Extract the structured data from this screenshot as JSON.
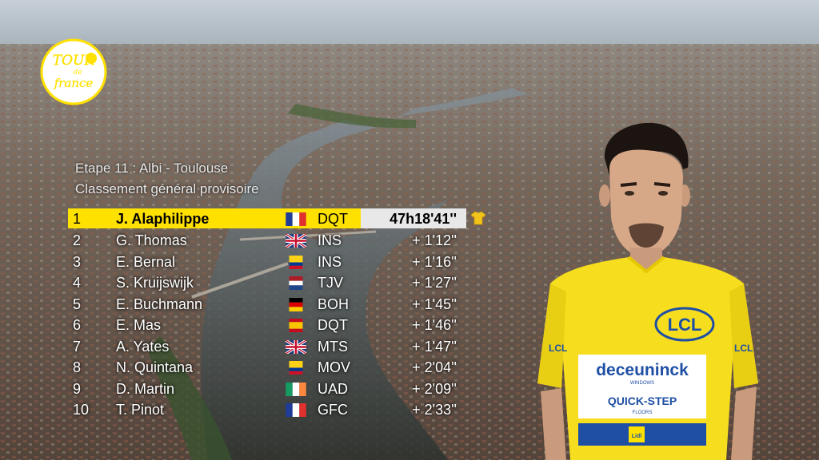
{
  "stage": {
    "title": "Etape 11 : Albi - Toulouse",
    "subtitle": "Classement général provisoire"
  },
  "standings": [
    {
      "pos": "1",
      "name": "J. Alaphilippe",
      "flag": "fr",
      "team": "DQT",
      "time": "47h18'41''"
    },
    {
      "pos": "2",
      "name": "G. Thomas",
      "flag": "gb",
      "team": "INS",
      "time": "+ 1'12''"
    },
    {
      "pos": "3",
      "name": "E. Bernal",
      "flag": "co",
      "team": "INS",
      "time": "+ 1'16''"
    },
    {
      "pos": "4",
      "name": "S. Kruijswijk",
      "flag": "nl",
      "team": "TJV",
      "time": "+ 1'27''"
    },
    {
      "pos": "5",
      "name": "E. Buchmann",
      "flag": "de",
      "team": "BOH",
      "time": "+ 1'45''"
    },
    {
      "pos": "6",
      "name": "E. Mas",
      "flag": "es",
      "team": "DQT",
      "time": "+ 1'46''"
    },
    {
      "pos": "7",
      "name": "A. Yates",
      "flag": "gb",
      "team": "MTS",
      "time": "+ 1'47''"
    },
    {
      "pos": "8",
      "name": "N. Quintana",
      "flag": "co",
      "team": "MOV",
      "time": "+ 2'04''"
    },
    {
      "pos": "9",
      "name": "D. Martin",
      "flag": "ie",
      "team": "UAD",
      "time": "+ 2'09''"
    },
    {
      "pos": "10",
      "name": "T. Pinot",
      "flag": "fr",
      "team": "GFC",
      "time": "+ 2'33''"
    }
  ],
  "logo": {
    "line1": "TOUR",
    "line2": "de",
    "line3": "france"
  },
  "jersey": {
    "sponsor_main": "deceuninck",
    "sponsor_small": "WINDOWS",
    "sponsor_second": "QUICK-STEP",
    "sponsor_second_small": "FLOORS",
    "chest_logo": "LCL",
    "bottom_logo": "Lidl"
  },
  "colors": {
    "leader_yellow": "#ffe100",
    "time_box": "#e8e8e8",
    "text": "#ffffff"
  }
}
